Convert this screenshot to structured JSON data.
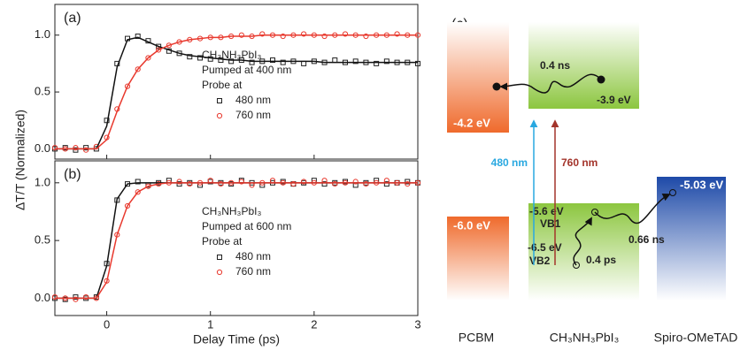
{
  "chart_data": [
    {
      "type": "scatter",
      "label": "(a)",
      "y_label": "ΔT/T (Normalized)",
      "x": [
        -0.5,
        -0.4,
        -0.3,
        -0.2,
        -0.1,
        0.0,
        0.1,
        0.2,
        0.3,
        0.4,
        0.5,
        0.6,
        0.7,
        0.8,
        0.9,
        1.0,
        1.1,
        1.2,
        1.3,
        1.4,
        1.5,
        1.6,
        1.7,
        1.8,
        1.9,
        2.0,
        2.1,
        2.2,
        2.3,
        2.4,
        2.5,
        2.6,
        2.7,
        2.8,
        2.9,
        3.0
      ],
      "series": [
        {
          "name": "480 nm",
          "color": "#222222",
          "marker": "square",
          "values": [
            0.0,
            0.01,
            -0.01,
            0.01,
            0.0,
            0.25,
            0.75,
            0.97,
            0.99,
            0.95,
            0.9,
            0.86,
            0.84,
            0.81,
            0.8,
            0.79,
            0.78,
            0.77,
            0.78,
            0.76,
            0.77,
            0.78,
            0.76,
            0.77,
            0.75,
            0.77,
            0.76,
            0.78,
            0.76,
            0.77,
            0.76,
            0.75,
            0.77,
            0.76,
            0.76,
            0.75
          ]
        },
        {
          "name": "760 nm",
          "color": "#e8392e",
          "marker": "circle",
          "values": [
            0.01,
            0.0,
            0.01,
            -0.01,
            0.02,
            0.1,
            0.35,
            0.55,
            0.7,
            0.8,
            0.87,
            0.91,
            0.94,
            0.96,
            0.97,
            0.98,
            0.98,
            0.99,
            1.0,
            0.99,
            1.01,
            1.0,
            0.99,
            1.0,
            1.01,
            1.0,
            0.99,
            1.0,
            1.01,
            1.0,
            0.99,
            1.0,
            1.0,
            1.01,
            1.0,
            1.0
          ]
        },
        {
          "color": "#111111",
          "style": "line",
          "values": [
            0,
            0,
            0,
            0,
            0,
            0.2,
            0.72,
            0.96,
            0.98,
            0.94,
            0.9,
            0.87,
            0.84,
            0.82,
            0.81,
            0.8,
            0.79,
            0.78,
            0.78,
            0.77,
            0.77,
            0.77,
            0.77,
            0.77,
            0.77,
            0.77,
            0.76,
            0.76,
            0.76,
            0.76,
            0.76,
            0.76,
            0.76,
            0.76,
            0.76,
            0.76
          ]
        },
        {
          "color": "#e8392e",
          "style": "line",
          "values": [
            0,
            0,
            0,
            0,
            0,
            0.08,
            0.33,
            0.55,
            0.7,
            0.8,
            0.87,
            0.91,
            0.94,
            0.96,
            0.97,
            0.98,
            0.98,
            0.99,
            0.99,
            0.99,
            1.0,
            1.0,
            1.0,
            1.0,
            1.0,
            1.0,
            1.0,
            1.0,
            1.0,
            1.0,
            1.0,
            1.0,
            1.0,
            1.0,
            1.0,
            1.0
          ]
        }
      ],
      "annotations": [
        "CH₃NH₃PbI₃",
        "Pumped at 400 nm",
        "Probe at"
      ],
      "xlim": [
        -0.5,
        3
      ],
      "xticks": [
        0,
        1,
        2,
        3
      ],
      "ylim": [
        -0.09,
        1.27
      ],
      "yticks": [
        {
          "value": 0,
          "label": "0.0"
        },
        {
          "value": 0.5,
          "label": "0.5"
        },
        {
          "value": 1,
          "label": "1.0"
        }
      ]
    },
    {
      "type": "scatter",
      "label": "(b)",
      "x_label": "Delay Time (ps)",
      "x": [
        -0.5,
        -0.4,
        -0.3,
        -0.2,
        -0.1,
        0.0,
        0.1,
        0.2,
        0.3,
        0.4,
        0.5,
        0.6,
        0.7,
        0.8,
        0.9,
        1.0,
        1.1,
        1.2,
        1.3,
        1.4,
        1.5,
        1.6,
        1.7,
        1.8,
        1.9,
        2.0,
        2.1,
        2.2,
        2.3,
        2.4,
        2.5,
        2.6,
        2.7,
        2.8,
        2.9,
        3.0
      ],
      "series": [
        {
          "name": "480 nm",
          "color": "#222222",
          "marker": "square",
          "values": [
            0.0,
            -0.01,
            0.01,
            0.0,
            0.01,
            0.3,
            0.85,
            0.99,
            1.01,
            0.98,
            1.0,
            1.02,
            0.99,
            1.0,
            0.98,
            1.01,
            1.0,
            0.99,
            1.02,
            1.0,
            0.98,
            1.0,
            1.01,
            0.99,
            1.0,
            1.02,
            0.99,
            1.0,
            1.01,
            0.98,
            1.0,
            1.02,
            0.99,
            1.0,
            1.01,
            1.0
          ]
        },
        {
          "name": "760 nm",
          "color": "#e8392e",
          "marker": "circle",
          "values": [
            0.01,
            0.0,
            -0.01,
            0.01,
            0.0,
            0.15,
            0.55,
            0.8,
            0.92,
            0.97,
            0.99,
            1.0,
            1.01,
            0.99,
            1.0,
            1.02,
            0.99,
            1.0,
            1.01,
            0.98,
            1.0,
            1.02,
            1.0,
            0.99,
            1.01,
            1.0,
            1.02,
            0.99,
            1.0,
            1.01,
            0.99,
            1.0,
            1.02,
            1.0,
            0.99,
            1.0
          ]
        },
        {
          "color": "#111111",
          "style": "line",
          "values": [
            0,
            0,
            0,
            0,
            0,
            0.28,
            0.86,
            0.99,
            1.0,
            1.0,
            1.0,
            1.0,
            1.0,
            1.0,
            1.0,
            1.0,
            1.0,
            1.0,
            1.0,
            1.0,
            1.0,
            1.0,
            1.0,
            1.0,
            1.0,
            1.0,
            1.0,
            1.0,
            1.0,
            1.0,
            1.0,
            1.0,
            1.0,
            1.0,
            1.0,
            1.0
          ]
        },
        {
          "color": "#e8392e",
          "style": "line",
          "values": [
            0,
            0,
            0,
            0,
            0,
            0.14,
            0.55,
            0.8,
            0.92,
            0.97,
            0.99,
            1.0,
            1.0,
            1.0,
            1.0,
            1.0,
            1.0,
            1.0,
            1.0,
            1.0,
            1.0,
            1.0,
            1.0,
            1.0,
            1.0,
            1.0,
            1.0,
            1.0,
            1.0,
            1.0,
            1.0,
            1.0,
            1.0,
            1.0,
            1.0,
            1.0
          ]
        }
      ],
      "annotations": [
        "CH₃NH₃PbI₃",
        "Pumped at 600 nm",
        "Probe at"
      ],
      "xlim": [
        -0.5,
        3
      ],
      "xticks": [
        0,
        1,
        2,
        3
      ],
      "ylim": [
        -0.15,
        1.19
      ],
      "yticks": [
        {
          "value": 0,
          "label": "0.0"
        },
        {
          "value": 0.5,
          "label": "0.5"
        },
        {
          "value": 1,
          "label": "1.0"
        }
      ]
    }
  ],
  "diagram": {
    "label": "(c)",
    "materials": [
      {
        "name": "PCBM",
        "levels": [
          "-4.2 eV",
          "-6.0 eV"
        ]
      },
      {
        "name": "CH₃NH₃PbI₃",
        "levels": [
          "-3.9 eV",
          "-5.6 eV",
          "-6.5 eV"
        ],
        "bands": [
          "VB1",
          "VB2"
        ]
      },
      {
        "name": "Spiro-OMeTAD",
        "levels": [
          "-5.03 eV"
        ]
      }
    ],
    "excitations": [
      "480 nm",
      "760 nm"
    ],
    "transfers": [
      "0.4 ns",
      "0.66 ns",
      "0.4 ps"
    ]
  }
}
